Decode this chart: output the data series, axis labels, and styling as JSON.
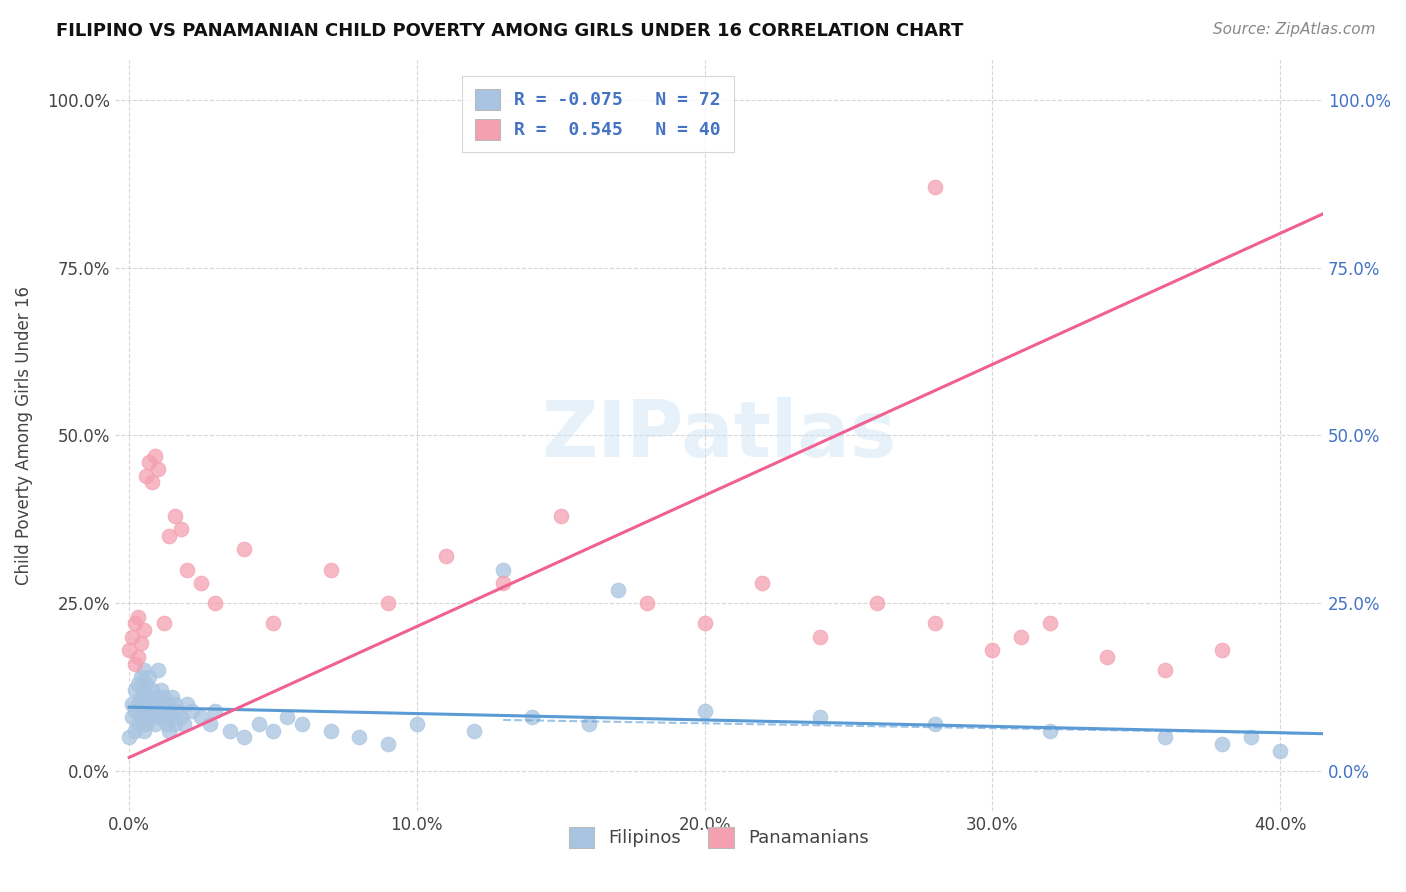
{
  "title": "FILIPINO VS PANAMANIAN CHILD POVERTY AMONG GIRLS UNDER 16 CORRELATION CHART",
  "source": "Source: ZipAtlas.com",
  "ylabel": "Child Poverty Among Girls Under 16",
  "watermark": "ZIPatlas",
  "filipinos_color": "#a8c4e0",
  "panamanians_color": "#f4a0b0",
  "filipinos_line_color": "#5b9bd5",
  "panamanians_line_color": "#f06090",
  "legend_text_color": "#4472c4",
  "right_tick_color": "#4472c4",
  "background_color": "#ffffff",
  "grid_color": "#cccccc",
  "title_fontsize": 13,
  "source_fontsize": 11,
  "filipinos_x": [
    0.0,
    0.001,
    0.001,
    0.002,
    0.002,
    0.002,
    0.003,
    0.003,
    0.003,
    0.004,
    0.004,
    0.004,
    0.005,
    0.005,
    0.005,
    0.005,
    0.006,
    0.006,
    0.006,
    0.007,
    0.007,
    0.007,
    0.008,
    0.008,
    0.009,
    0.009,
    0.01,
    0.01,
    0.01,
    0.011,
    0.011,
    0.012,
    0.012,
    0.013,
    0.013,
    0.014,
    0.014,
    0.015,
    0.015,
    0.016,
    0.016,
    0.017,
    0.018,
    0.019,
    0.02,
    0.022,
    0.025,
    0.028,
    0.03,
    0.035,
    0.04,
    0.045,
    0.05,
    0.055,
    0.06,
    0.07,
    0.08,
    0.09,
    0.1,
    0.12,
    0.14,
    0.16,
    0.2,
    0.24,
    0.28,
    0.32,
    0.36,
    0.38,
    0.39,
    0.4,
    0.17,
    0.13
  ],
  "filipinos_y": [
    0.05,
    0.08,
    0.1,
    0.06,
    0.09,
    0.12,
    0.07,
    0.1,
    0.13,
    0.08,
    0.11,
    0.14,
    0.06,
    0.09,
    0.12,
    0.15,
    0.07,
    0.1,
    0.13,
    0.08,
    0.11,
    0.14,
    0.09,
    0.12,
    0.07,
    0.1,
    0.08,
    0.11,
    0.15,
    0.09,
    0.12,
    0.08,
    0.11,
    0.07,
    0.1,
    0.06,
    0.09,
    0.08,
    0.11,
    0.07,
    0.1,
    0.09,
    0.08,
    0.07,
    0.1,
    0.09,
    0.08,
    0.07,
    0.09,
    0.06,
    0.05,
    0.07,
    0.06,
    0.08,
    0.07,
    0.06,
    0.05,
    0.04,
    0.07,
    0.06,
    0.08,
    0.07,
    0.09,
    0.08,
    0.07,
    0.06,
    0.05,
    0.04,
    0.05,
    0.03,
    0.27,
    0.3
  ],
  "panamanians_x": [
    0.0,
    0.001,
    0.002,
    0.002,
    0.003,
    0.003,
    0.004,
    0.005,
    0.006,
    0.007,
    0.008,
    0.009,
    0.01,
    0.012,
    0.014,
    0.016,
    0.018,
    0.02,
    0.025,
    0.03,
    0.04,
    0.05,
    0.07,
    0.09,
    0.11,
    0.13,
    0.15,
    0.18,
    0.2,
    0.22,
    0.24,
    0.26,
    0.28,
    0.3,
    0.31,
    0.32,
    0.34,
    0.36,
    0.38,
    0.28
  ],
  "panamanians_y": [
    0.18,
    0.2,
    0.16,
    0.22,
    0.17,
    0.23,
    0.19,
    0.21,
    0.44,
    0.46,
    0.43,
    0.47,
    0.45,
    0.22,
    0.35,
    0.38,
    0.36,
    0.3,
    0.28,
    0.25,
    0.33,
    0.22,
    0.3,
    0.25,
    0.32,
    0.28,
    0.38,
    0.25,
    0.22,
    0.28,
    0.2,
    0.25,
    0.22,
    0.18,
    0.2,
    0.22,
    0.17,
    0.15,
    0.18,
    0.87
  ],
  "fil_line_x": [
    0.0,
    0.42
  ],
  "fil_line_y": [
    0.095,
    0.055
  ],
  "pan_line_x": [
    0.0,
    0.42
  ],
  "pan_line_y": [
    0.02,
    0.84
  ],
  "xlim": [
    -0.005,
    0.415
  ],
  "ylim": [
    -0.06,
    1.06
  ],
  "xticks": [
    0.0,
    0.1,
    0.2,
    0.3,
    0.4
  ],
  "xticklabels": [
    "0.0%",
    "10.0%",
    "20.0%",
    "30.0%",
    "40.0%"
  ],
  "yticks": [
    0.0,
    0.25,
    0.5,
    0.75,
    1.0
  ],
  "yticklabels_left": [
    "0.0%",
    "25.0%",
    "50.0%",
    "75.0%",
    "100.0%"
  ],
  "yticklabels_right": [
    "0.0%",
    "25.0%",
    "50.0%",
    "75.0%",
    "100.0%"
  ]
}
